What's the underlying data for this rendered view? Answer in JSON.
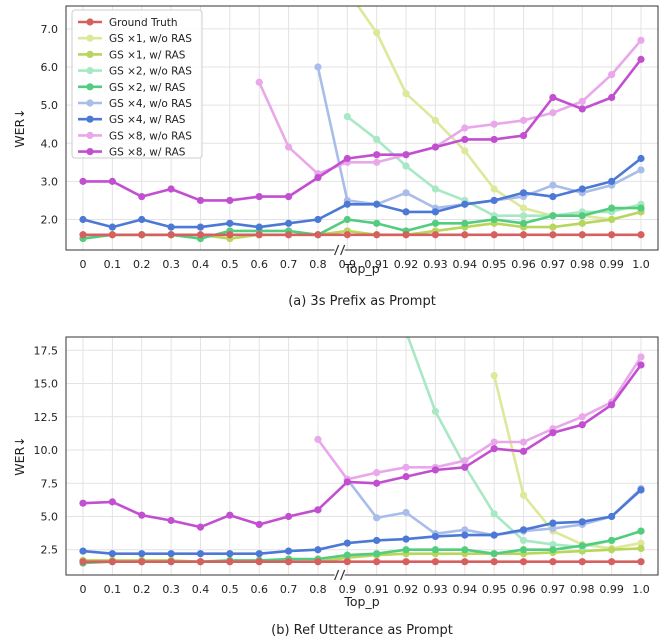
{
  "chart_data": [
    {
      "type": "line",
      "caption": "(a) 3s Prefix as Prompt",
      "xlabel": "Top_p",
      "ylabel": "WER↓",
      "categories": [
        "0",
        "0.1",
        "0.2",
        "0.3",
        "0.4",
        "0.5",
        "0.6",
        "0.7",
        "0.8",
        "0.9",
        "0.91",
        "0.92",
        "0.93",
        "0.94",
        "0.95",
        "0.96",
        "0.97",
        "0.98",
        "0.99",
        "1.0"
      ],
      "axis_break_between": [
        "0.8",
        "0.9"
      ],
      "yticks": [
        "2.0",
        "3.0",
        "4.0",
        "5.0",
        "6.0",
        "7.0"
      ],
      "ylim": [
        1.2,
        7.6
      ],
      "grid": true,
      "legend_position": "top-left",
      "series": [
        {
          "name": "Ground Truth",
          "color": "#d65f5f",
          "values": [
            1.6,
            1.6,
            1.6,
            1.6,
            1.6,
            1.6,
            1.6,
            1.6,
            1.6,
            1.6,
            1.6,
            1.6,
            1.6,
            1.6,
            1.6,
            1.6,
            1.6,
            1.6,
            1.6,
            1.6
          ]
        },
        {
          "name": "GS ×1, w/o RAS",
          "color": "#dde89a",
          "values": [
            null,
            null,
            null,
            null,
            null,
            null,
            null,
            null,
            null,
            8.0,
            6.9,
            5.3,
            4.6,
            3.8,
            2.8,
            2.3,
            2.1,
            2.1,
            2.0,
            2.2
          ]
        },
        {
          "name": "GS ×1, w/ RAS",
          "color": "#b8d65b",
          "values": [
            1.6,
            1.6,
            1.6,
            1.6,
            1.6,
            1.5,
            1.6,
            1.6,
            1.6,
            1.7,
            1.6,
            1.6,
            1.7,
            1.8,
            1.9,
            1.8,
            1.8,
            1.9,
            2.0,
            2.2
          ]
        },
        {
          "name": "GS ×2, w/o RAS",
          "color": "#a8e8c4",
          "values": [
            null,
            null,
            null,
            null,
            null,
            null,
            null,
            null,
            null,
            4.7,
            4.1,
            3.4,
            2.8,
            2.5,
            2.1,
            2.1,
            2.1,
            2.2,
            2.2,
            2.4
          ]
        },
        {
          "name": "GS ×2, w/ RAS",
          "color": "#52cc7e",
          "values": [
            1.5,
            1.6,
            1.6,
            1.6,
            1.5,
            1.7,
            1.7,
            1.7,
            1.6,
            2.0,
            1.9,
            1.7,
            1.9,
            1.9,
            2.0,
            1.9,
            2.1,
            2.1,
            2.3,
            2.3
          ]
        },
        {
          "name": "GS ×4, w/o RAS",
          "color": "#a8bdea",
          "values": [
            null,
            null,
            null,
            null,
            null,
            null,
            null,
            null,
            6.0,
            2.5,
            2.4,
            2.7,
            2.3,
            2.4,
            2.5,
            2.6,
            2.9,
            2.7,
            2.9,
            3.3
          ]
        },
        {
          "name": "GS ×4, w/ RAS",
          "color": "#4c78d6",
          "values": [
            2.0,
            1.8,
            2.0,
            1.8,
            1.8,
            1.9,
            1.8,
            1.9,
            2.0,
            2.4,
            2.4,
            2.2,
            2.2,
            2.4,
            2.5,
            2.7,
            2.6,
            2.8,
            3.0,
            3.6
          ]
        },
        {
          "name": "GS ×8, w/o RAS",
          "color": "#e8a8ea",
          "values": [
            null,
            null,
            null,
            null,
            null,
            null,
            5.6,
            3.9,
            3.2,
            3.5,
            3.5,
            3.7,
            3.9,
            4.4,
            4.5,
            4.6,
            4.8,
            5.1,
            5.8,
            6.7
          ]
        },
        {
          "name": "GS ×8, w/ RAS",
          "color": "#c24fd0",
          "values": [
            3.0,
            3.0,
            2.6,
            2.8,
            2.5,
            2.5,
            2.6,
            2.6,
            3.1,
            3.6,
            3.7,
            3.7,
            3.9,
            4.1,
            4.1,
            4.2,
            5.2,
            4.9,
            5.2,
            6.2
          ]
        }
      ]
    },
    {
      "type": "line",
      "caption": "(b) Ref Utterance as Prompt",
      "xlabel": "Top_p",
      "ylabel": "WER↓",
      "categories": [
        "0",
        "0.1",
        "0.2",
        "0.3",
        "0.4",
        "0.5",
        "0.6",
        "0.7",
        "0.8",
        "0.9",
        "0.91",
        "0.92",
        "0.93",
        "0.94",
        "0.95",
        "0.96",
        "0.97",
        "0.98",
        "0.99",
        "1.0"
      ],
      "axis_break_between": [
        "0.8",
        "0.9"
      ],
      "yticks": [
        "2.5",
        "5.0",
        "7.5",
        "10.0",
        "12.5",
        "15.0",
        "17.5"
      ],
      "ylim": [
        0.6,
        18.5
      ],
      "grid": true,
      "legend_position": "none",
      "series": [
        {
          "name": "Ground Truth",
          "color": "#d65f5f",
          "values": [
            1.6,
            1.6,
            1.6,
            1.6,
            1.6,
            1.6,
            1.6,
            1.6,
            1.6,
            1.6,
            1.6,
            1.6,
            1.6,
            1.6,
            1.6,
            1.6,
            1.6,
            1.6,
            1.6,
            1.6
          ]
        },
        {
          "name": "GS ×1, w/o RAS",
          "color": "#dde89a",
          "values": [
            null,
            null,
            null,
            null,
            null,
            null,
            null,
            null,
            null,
            null,
            null,
            null,
            null,
            null,
            15.6,
            6.6,
            3.9,
            2.9,
            2.6,
            3.0
          ]
        },
        {
          "name": "GS ×1, w/ RAS",
          "color": "#b8d65b",
          "values": [
            1.7,
            1.7,
            1.7,
            1.7,
            1.6,
            1.6,
            1.6,
            1.6,
            1.6,
            1.9,
            2.1,
            2.2,
            2.2,
            2.2,
            2.2,
            2.2,
            2.3,
            2.4,
            2.5,
            2.6
          ]
        },
        {
          "name": "GS ×2, w/o RAS",
          "color": "#a8e8c4",
          "values": [
            null,
            null,
            null,
            null,
            null,
            null,
            null,
            null,
            null,
            null,
            null,
            18.9,
            12.9,
            8.8,
            5.2,
            3.2,
            2.9,
            2.7,
            3.2,
            3.9
          ]
        },
        {
          "name": "GS ×2, w/ RAS",
          "color": "#52cc7e",
          "values": [
            1.5,
            1.6,
            1.6,
            1.6,
            1.6,
            1.7,
            1.7,
            1.8,
            1.8,
            2.1,
            2.2,
            2.5,
            2.5,
            2.5,
            2.2,
            2.5,
            2.5,
            2.8,
            3.2,
            3.9
          ]
        },
        {
          "name": "GS ×4, w/o RAS",
          "color": "#a8bdea",
          "values": [
            null,
            null,
            null,
            null,
            null,
            null,
            null,
            null,
            null,
            7.8,
            4.9,
            5.3,
            3.7,
            4.0,
            3.6,
            3.9,
            4.1,
            4.4,
            5.0,
            7.1
          ]
        },
        {
          "name": "GS ×4, w/ RAS",
          "color": "#4c78d6",
          "values": [
            2.4,
            2.2,
            2.2,
            2.2,
            2.2,
            2.2,
            2.2,
            2.4,
            2.5,
            3.0,
            3.2,
            3.3,
            3.5,
            3.6,
            3.6,
            4.0,
            4.5,
            4.6,
            5.0,
            7.0
          ]
        },
        {
          "name": "GS ×8, w/o RAS",
          "color": "#e8a8ea",
          "values": [
            null,
            null,
            null,
            null,
            null,
            null,
            null,
            null,
            10.8,
            7.8,
            8.3,
            8.7,
            8.7,
            9.2,
            10.6,
            10.6,
            11.6,
            12.5,
            13.6,
            17.0
          ]
        },
        {
          "name": "GS ×8, w/ RAS",
          "color": "#c24fd0",
          "values": [
            6.0,
            6.1,
            5.1,
            4.7,
            4.2,
            5.1,
            4.4,
            5.0,
            5.5,
            7.6,
            7.5,
            8.0,
            8.5,
            8.7,
            10.1,
            9.9,
            11.3,
            11.9,
            13.4,
            16.4
          ]
        }
      ]
    }
  ]
}
